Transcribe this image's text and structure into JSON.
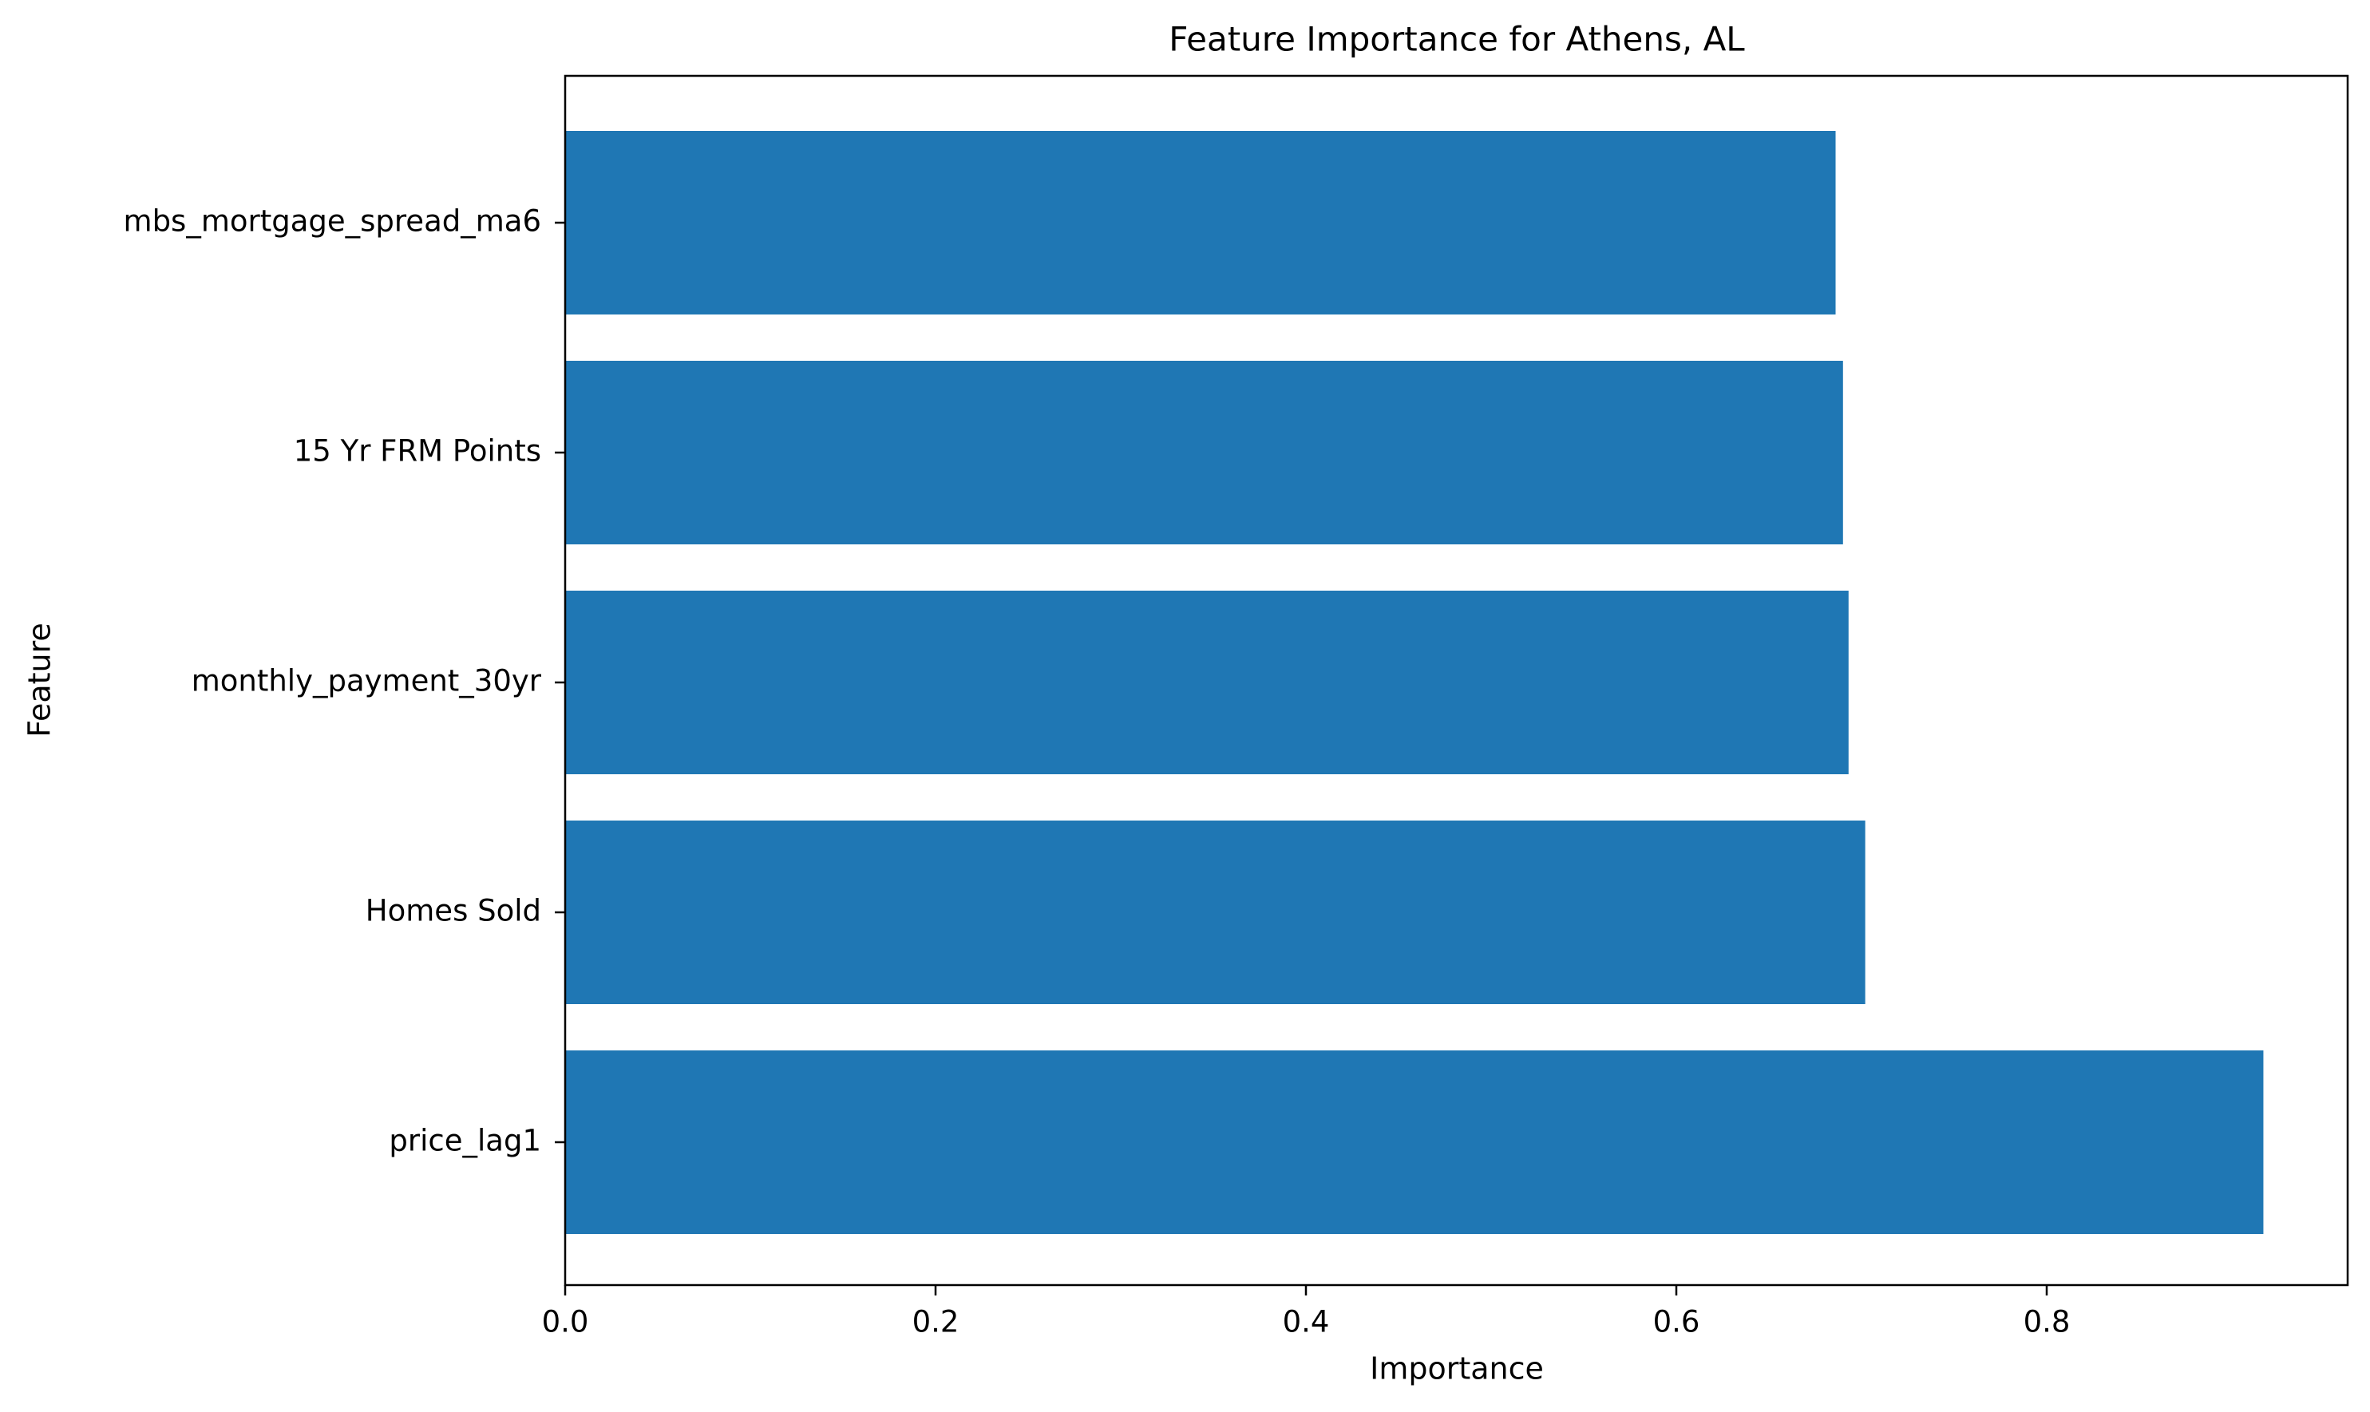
{
  "chart_data": {
    "type": "bar",
    "orientation": "horizontal",
    "title": "Feature Importance for Athens, AL",
    "xlabel": "Importance",
    "ylabel": "Feature",
    "categories": [
      "mbs_mortgage_spread_ma6",
      "15 Yr FRM Points",
      "monthly_payment_30yr",
      "Homes Sold",
      "price_lag1"
    ],
    "values": [
      0.686,
      0.69,
      0.693,
      0.702,
      0.917
    ],
    "xlim": [
      0,
      0.9625
    ],
    "xticks": [
      0.0,
      0.2,
      0.4,
      0.6,
      0.8
    ],
    "xtick_labels": [
      "0.0",
      "0.2",
      "0.4",
      "0.6",
      "0.8"
    ],
    "bar_color": "#1f77b4",
    "grid": false,
    "legend": "none"
  }
}
